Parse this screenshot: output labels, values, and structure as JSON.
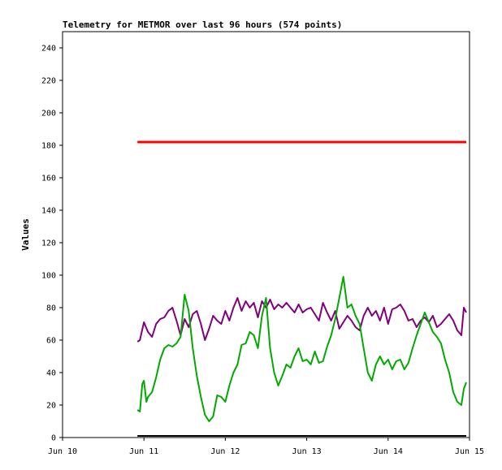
{
  "chart_data": {
    "type": "line",
    "title": "Telemetry for METMOR over last 96 hours (574 points)",
    "xlabel": "",
    "ylabel": "Values",
    "x_ticks": [
      "Jun 10",
      "Jun 11",
      "Jun 12",
      "Jun 13",
      "Jun 14",
      "Jun 15"
    ],
    "x_range_days": [
      10,
      15
    ],
    "ylim": [
      0,
      250
    ],
    "y_ticks": [
      0,
      20,
      40,
      60,
      80,
      100,
      120,
      140,
      160,
      180,
      200,
      220,
      240
    ],
    "grid": false,
    "legend": "none",
    "series": [
      {
        "color": "#ff0000",
        "values_x": [
          10.92,
          11.1,
          11.3,
          11.5,
          11.7,
          11.9,
          12.1,
          12.3,
          12.5,
          12.7,
          12.9,
          13.1,
          13.3,
          13.5,
          13.7,
          13.9,
          14.1,
          14.3,
          14.5,
          14.7,
          14.9,
          14.96
        ],
        "values_y": [
          182,
          182,
          182,
          182,
          182,
          182,
          182,
          182,
          182,
          182,
          182,
          182,
          182,
          182,
          182,
          182,
          182,
          182,
          182,
          182,
          182,
          182
        ]
      },
      {
        "color": "#800080",
        "values_x": [
          10.92,
          10.95,
          11.0,
          11.05,
          11.1,
          11.15,
          11.2,
          11.25,
          11.3,
          11.35,
          11.4,
          11.45,
          11.5,
          11.55,
          11.6,
          11.65,
          11.7,
          11.75,
          11.8,
          11.85,
          11.9,
          11.95,
          12.0,
          12.05,
          12.1,
          12.15,
          12.2,
          12.25,
          12.3,
          12.35,
          12.4,
          12.45,
          12.5,
          12.55,
          12.6,
          12.65,
          12.7,
          12.75,
          12.8,
          12.85,
          12.9,
          12.95,
          13.0,
          13.05,
          13.1,
          13.15,
          13.2,
          13.25,
          13.3,
          13.35,
          13.4,
          13.45,
          13.5,
          13.55,
          13.6,
          13.65,
          13.7,
          13.75,
          13.8,
          13.85,
          13.9,
          13.95,
          14.0,
          14.05,
          14.1,
          14.15,
          14.2,
          14.25,
          14.3,
          14.35,
          14.4,
          14.45,
          14.5,
          14.55,
          14.6,
          14.65,
          14.7,
          14.75,
          14.8,
          14.85,
          14.9,
          14.93,
          14.96
        ],
        "values_y": [
          59,
          60,
          71,
          65,
          62,
          70,
          73,
          74,
          78,
          80,
          72,
          63,
          73,
          68,
          76,
          78,
          70,
          60,
          67,
          75,
          72,
          70,
          78,
          72,
          80,
          86,
          78,
          84,
          80,
          83,
          74,
          84,
          80,
          85,
          79,
          82,
          80,
          83,
          80,
          77,
          82,
          77,
          79,
          80,
          76,
          72,
          83,
          77,
          72,
          78,
          67,
          71,
          75,
          72,
          68,
          66,
          75,
          80,
          75,
          78,
          72,
          80,
          70,
          79,
          80,
          82,
          78,
          72,
          73,
          68,
          72,
          74,
          71,
          75,
          68,
          70,
          73,
          76,
          72,
          66,
          63,
          80,
          77
        ]
      },
      {
        "color": "#00aa00",
        "values_x": [
          10.92,
          10.95,
          10.98,
          11.0,
          11.03,
          11.05,
          11.1,
          11.15,
          11.2,
          11.25,
          11.3,
          11.35,
          11.4,
          11.45,
          11.5,
          11.55,
          11.6,
          11.65,
          11.7,
          11.75,
          11.8,
          11.85,
          11.9,
          11.95,
          12.0,
          12.05,
          12.1,
          12.15,
          12.2,
          12.25,
          12.3,
          12.35,
          12.4,
          12.45,
          12.5,
          12.55,
          12.6,
          12.65,
          12.7,
          12.75,
          12.8,
          12.85,
          12.9,
          12.95,
          13.0,
          13.05,
          13.1,
          13.15,
          13.2,
          13.25,
          13.3,
          13.35,
          13.4,
          13.45,
          13.5,
          13.55,
          13.6,
          13.65,
          13.7,
          13.75,
          13.8,
          13.85,
          13.9,
          13.95,
          14.0,
          14.05,
          14.1,
          14.15,
          14.2,
          14.25,
          14.3,
          14.35,
          14.4,
          14.45,
          14.5,
          14.55,
          14.6,
          14.65,
          14.7,
          14.75,
          14.8,
          14.85,
          14.9,
          14.93,
          14.96
        ],
        "values_y": [
          17,
          16,
          33,
          35,
          22,
          25,
          28,
          37,
          48,
          55,
          57,
          56,
          58,
          62,
          88,
          78,
          55,
          38,
          25,
          14,
          10,
          13,
          26,
          25,
          22,
          32,
          40,
          45,
          57,
          58,
          65,
          63,
          55,
          75,
          86,
          55,
          40,
          32,
          38,
          45,
          43,
          50,
          55,
          47,
          48,
          45,
          53,
          46,
          47,
          56,
          63,
          73,
          86,
          99,
          80,
          82,
          75,
          70,
          55,
          40,
          35,
          45,
          50,
          45,
          48,
          42,
          47,
          48,
          42,
          46,
          55,
          63,
          70,
          77,
          71,
          65,
          62,
          58,
          48,
          40,
          28,
          22,
          20,
          30,
          34
        ]
      },
      {
        "color": "#000000",
        "values_x": [
          10.92,
          14.96
        ],
        "values_y": [
          1,
          1
        ]
      }
    ]
  }
}
